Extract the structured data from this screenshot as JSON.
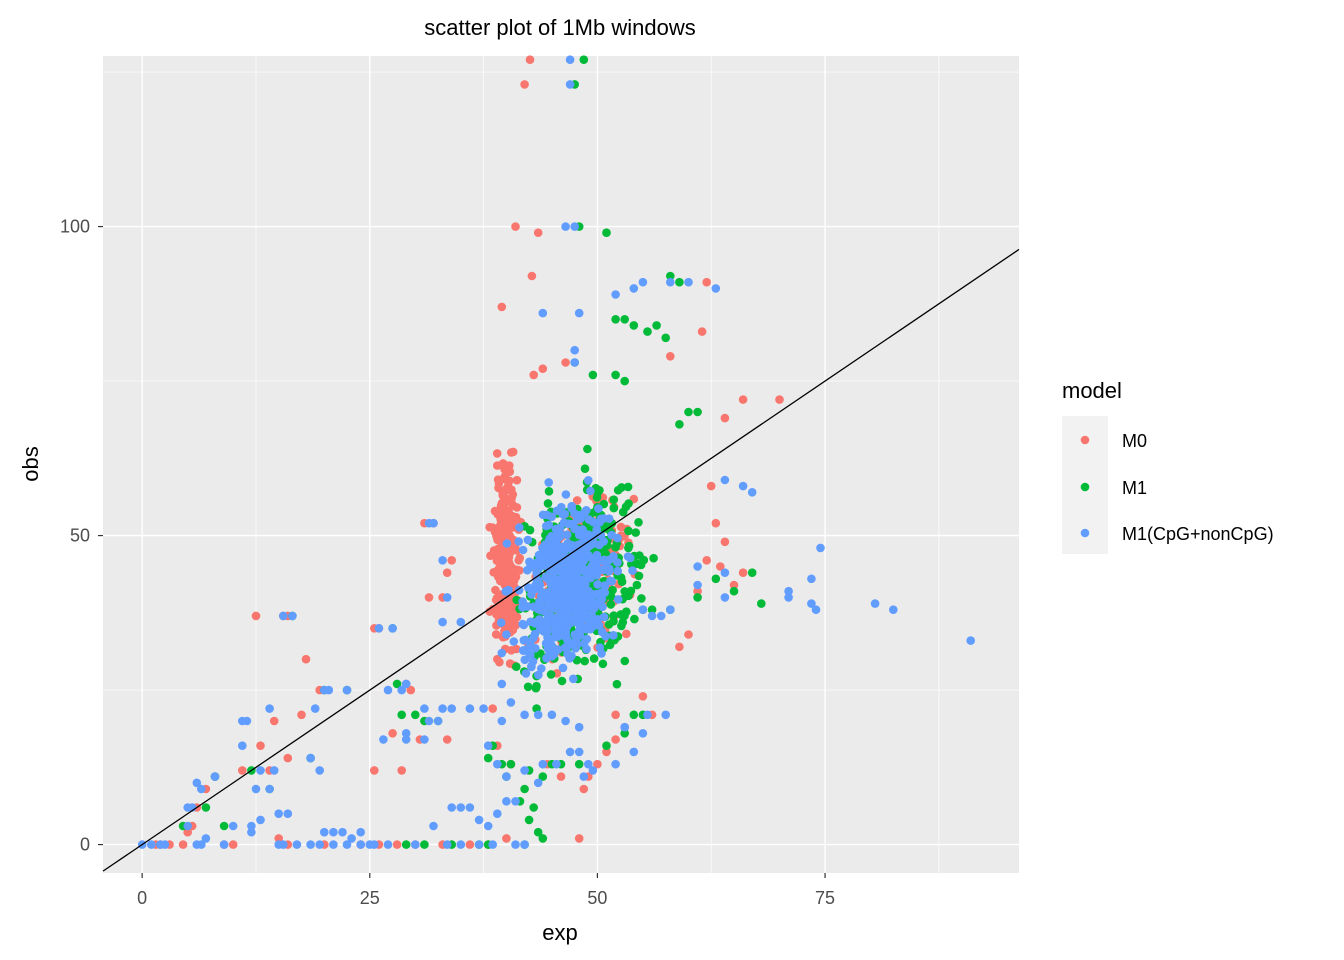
{
  "chart_data": {
    "type": "scatter",
    "title": "scatter plot of 1Mb windows",
    "xlabel": "exp",
    "ylabel": "obs",
    "xlim": [
      -4.3,
      96.3
    ],
    "ylim": [
      -4.6,
      127.6
    ],
    "x_ticks": [
      0,
      25,
      50,
      75
    ],
    "y_ticks": [
      0,
      50,
      100
    ],
    "grid": true,
    "legend": {
      "title": "model",
      "placement": "right",
      "entries": [
        "M0",
        "M1",
        "M1(CpG+nonCpG)"
      ]
    },
    "colors": {
      "M0": "#F8766D",
      "M1": "#00BA38",
      "M1(CpG+nonCpG)": "#619CFF",
      "panel": "#EBEBEB",
      "line": "#000000"
    },
    "reference_line": {
      "label": "",
      "x": [
        -4.3,
        96.3
      ],
      "y": [
        -4.3,
        96.3
      ]
    },
    "clusters": [
      {
        "series": "M0",
        "cx": [
          38,
          42
        ],
        "cy": [
          26,
          66
        ],
        "n": 260
      },
      {
        "series": "M0",
        "cx": [
          41,
          55
        ],
        "cy": [
          26,
          60
        ],
        "n": 220
      },
      {
        "series": "M1",
        "cx": [
          40,
          57
        ],
        "cy": [
          22,
          64
        ],
        "n": 380
      },
      {
        "series": "M1(CpG+nonCpG)",
        "cx": [
          39,
          54
        ],
        "cy": [
          24,
          60
        ],
        "n": 520
      }
    ],
    "series": [
      {
        "name": "M0",
        "points": [
          [
            42.6,
            127
          ],
          [
            42,
            123
          ],
          [
            41,
            100
          ],
          [
            43.5,
            99
          ],
          [
            42.8,
            92
          ],
          [
            39.5,
            87
          ],
          [
            46.5,
            78
          ],
          [
            44,
            77
          ],
          [
            43,
            76
          ],
          [
            62,
            91
          ],
          [
            61.5,
            83
          ],
          [
            58,
            79
          ],
          [
            70,
            72
          ],
          [
            66,
            72
          ],
          [
            64,
            69
          ],
          [
            62.5,
            58
          ],
          [
            63,
            52
          ],
          [
            64,
            49
          ],
          [
            63.5,
            45
          ],
          [
            12.5,
            37
          ],
          [
            16,
            37
          ],
          [
            15.5,
            37
          ],
          [
            25.5,
            35
          ],
          [
            26,
            35
          ],
          [
            32,
            52
          ],
          [
            31,
            52
          ],
          [
            31.5,
            40
          ],
          [
            33.5,
            44
          ],
          [
            33,
            40
          ],
          [
            34,
            46
          ],
          [
            29,
            26
          ],
          [
            29.5,
            25
          ],
          [
            27.5,
            18
          ],
          [
            30.5,
            17
          ],
          [
            33.5,
            17
          ],
          [
            28.5,
            12
          ],
          [
            25.5,
            12
          ],
          [
            14.5,
            20
          ],
          [
            13,
            16
          ],
          [
            11,
            12
          ],
          [
            8,
            11
          ],
          [
            7,
            9
          ],
          [
            6,
            6
          ],
          [
            5.5,
            3
          ],
          [
            5,
            2
          ],
          [
            3,
            0
          ],
          [
            2,
            0
          ],
          [
            1.5,
            0
          ],
          [
            4.5,
            0
          ],
          [
            9,
            0
          ],
          [
            10,
            0
          ],
          [
            15,
            1
          ],
          [
            16,
            0
          ],
          [
            20,
            0
          ],
          [
            24,
            0
          ],
          [
            26,
            0
          ],
          [
            28,
            0
          ],
          [
            30,
            0
          ],
          [
            33,
            0
          ],
          [
            36,
            0
          ],
          [
            38,
            0
          ],
          [
            40,
            1
          ],
          [
            48,
            1
          ],
          [
            48.5,
            9
          ],
          [
            49,
            11
          ],
          [
            50,
            13
          ],
          [
            51,
            15
          ],
          [
            52,
            17
          ],
          [
            53,
            19
          ],
          [
            52,
            21
          ],
          [
            55,
            24
          ],
          [
            56,
            21
          ],
          [
            59,
            32
          ],
          [
            60,
            34
          ],
          [
            61,
            41
          ],
          [
            62,
            46
          ],
          [
            65,
            42
          ],
          [
            66,
            44
          ],
          [
            39,
            30
          ],
          [
            38.5,
            22
          ],
          [
            39,
            16
          ],
          [
            40.5,
            13
          ],
          [
            44.5,
            13
          ],
          [
            46,
            11
          ],
          [
            18,
            30
          ],
          [
            19.5,
            25
          ],
          [
            17.5,
            21
          ],
          [
            16,
            14
          ],
          [
            14,
            12
          ]
        ]
      },
      {
        "name": "M1",
        "points": [
          [
            48.5,
            127
          ],
          [
            47.5,
            123
          ],
          [
            51,
            99
          ],
          [
            48,
            100
          ],
          [
            58,
            92
          ],
          [
            59,
            91
          ],
          [
            53,
            85
          ],
          [
            52,
            85
          ],
          [
            54,
            84
          ],
          [
            56.5,
            84
          ],
          [
            55.5,
            83
          ],
          [
            57.5,
            82
          ],
          [
            47.5,
            78
          ],
          [
            49.5,
            76
          ],
          [
            52,
            76
          ],
          [
            53,
            75
          ],
          [
            61,
            70
          ],
          [
            60,
            70
          ],
          [
            59,
            68
          ],
          [
            68,
            39
          ],
          [
            65,
            41
          ],
          [
            67,
            44
          ],
          [
            63,
            43
          ],
          [
            61,
            40
          ],
          [
            58,
            38
          ],
          [
            56,
            38
          ],
          [
            55,
            38
          ],
          [
            16.5,
            37
          ],
          [
            27.5,
            35
          ],
          [
            28,
            26
          ],
          [
            28.5,
            21
          ],
          [
            30,
            21
          ],
          [
            31,
            20
          ],
          [
            32.5,
            20
          ],
          [
            29,
            0
          ],
          [
            31,
            0
          ],
          [
            34,
            0
          ],
          [
            37,
            0
          ],
          [
            38,
            0
          ],
          [
            42,
            0
          ],
          [
            44,
            1
          ],
          [
            43.5,
            2
          ],
          [
            42.5,
            4
          ],
          [
            43,
            6
          ],
          [
            41.5,
            7
          ],
          [
            42,
            9
          ],
          [
            40,
            11
          ],
          [
            42.5,
            12
          ],
          [
            44,
            11
          ],
          [
            45,
            13
          ],
          [
            46,
            13
          ],
          [
            48,
            13
          ],
          [
            51,
            16
          ],
          [
            53,
            18
          ],
          [
            54,
            21
          ],
          [
            55,
            21
          ],
          [
            39.5,
            13
          ],
          [
            40.5,
            13
          ],
          [
            38.5,
            16
          ],
          [
            38,
            14
          ],
          [
            22.5,
            25
          ],
          [
            20,
            25
          ],
          [
            18.5,
            14
          ],
          [
            14,
            9
          ],
          [
            12,
            12
          ],
          [
            8,
            11
          ],
          [
            7,
            6
          ],
          [
            4.5,
            3
          ],
          [
            9,
            3
          ]
        ]
      },
      {
        "name": "M1(CpG+nonCpG)",
        "points": [
          [
            47,
            127
          ],
          [
            47,
            123
          ],
          [
            47.5,
            100
          ],
          [
            46.5,
            100
          ],
          [
            63,
            90
          ],
          [
            60,
            91
          ],
          [
            58,
            91
          ],
          [
            55,
            91
          ],
          [
            54,
            90
          ],
          [
            52,
            89
          ],
          [
            48,
            86
          ],
          [
            44,
            86
          ],
          [
            47.5,
            78
          ],
          [
            47.5,
            80
          ],
          [
            91,
            33
          ],
          [
            82.5,
            38
          ],
          [
            80.5,
            39
          ],
          [
            74,
            38
          ],
          [
            73.5,
            39
          ],
          [
            73.5,
            43
          ],
          [
            71,
            40
          ],
          [
            71,
            41
          ],
          [
            74.5,
            48
          ],
          [
            67,
            57
          ],
          [
            66,
            58
          ],
          [
            64,
            59
          ],
          [
            64,
            44
          ],
          [
            64,
            40
          ],
          [
            61,
            42
          ],
          [
            61,
            45
          ],
          [
            58,
            38
          ],
          [
            57,
            37
          ],
          [
            56,
            37
          ],
          [
            55,
            38
          ],
          [
            16.5,
            37
          ],
          [
            15.5,
            37
          ],
          [
            27.5,
            35
          ],
          [
            26,
            35
          ],
          [
            32,
            52
          ],
          [
            31.5,
            52
          ],
          [
            33,
            46
          ],
          [
            33.5,
            40
          ],
          [
            33,
            36
          ],
          [
            35,
            36
          ],
          [
            29,
            26
          ],
          [
            28.5,
            25
          ],
          [
            27,
            25
          ],
          [
            29,
            18
          ],
          [
            26.5,
            17
          ],
          [
            29,
            17
          ],
          [
            31,
            17
          ],
          [
            31.5,
            20
          ],
          [
            32.5,
            20
          ],
          [
            22.5,
            25
          ],
          [
            20.5,
            25
          ],
          [
            20,
            25
          ],
          [
            19,
            22
          ],
          [
            18.5,
            14
          ],
          [
            19.5,
            12
          ],
          [
            14.5,
            12
          ],
          [
            14,
            9
          ],
          [
            12.5,
            9
          ],
          [
            11,
            16
          ],
          [
            11,
            20
          ],
          [
            11.5,
            20
          ],
          [
            14,
            22
          ],
          [
            13,
            12
          ],
          [
            10,
            3
          ],
          [
            8,
            11
          ],
          [
            6.5,
            9
          ],
          [
            6,
            10
          ],
          [
            5,
            6
          ],
          [
            5.5,
            6
          ],
          [
            5,
            3
          ],
          [
            7,
            1
          ],
          [
            6,
            0
          ],
          [
            6.5,
            0
          ],
          [
            1,
            0
          ],
          [
            2,
            0
          ],
          [
            0,
            0
          ],
          [
            2.5,
            0
          ],
          [
            9,
            0
          ],
          [
            15,
            0
          ],
          [
            15.5,
            0
          ],
          [
            18.5,
            0
          ],
          [
            19.5,
            0
          ],
          [
            21,
            0
          ],
          [
            22.5,
            0
          ],
          [
            24,
            0
          ],
          [
            25,
            0
          ],
          [
            25.5,
            0
          ],
          [
            27,
            0
          ],
          [
            30,
            0
          ],
          [
            33.5,
            0
          ],
          [
            35,
            0
          ],
          [
            37,
            0
          ],
          [
            38.5,
            0
          ],
          [
            41,
            0
          ],
          [
            42,
            0
          ],
          [
            12,
            2
          ],
          [
            12,
            3
          ],
          [
            13,
            4
          ],
          [
            15,
            5
          ],
          [
            16,
            5
          ],
          [
            17,
            0
          ],
          [
            20,
            2
          ],
          [
            21,
            2
          ],
          [
            22,
            2
          ],
          [
            23,
            1
          ],
          [
            24,
            2
          ],
          [
            32,
            3
          ],
          [
            34,
            6
          ],
          [
            35,
            6
          ],
          [
            36,
            6
          ],
          [
            37,
            4
          ],
          [
            38,
            3
          ],
          [
            39,
            5
          ],
          [
            40,
            7
          ],
          [
            41,
            7
          ],
          [
            42,
            12
          ],
          [
            43.5,
            10
          ],
          [
            44,
            13
          ],
          [
            45.5,
            13
          ],
          [
            47,
            15
          ],
          [
            48,
            15
          ],
          [
            49,
            13
          ],
          [
            48.5,
            11
          ],
          [
            49.5,
            12
          ],
          [
            52,
            13
          ],
          [
            54,
            15
          ],
          [
            55,
            18
          ],
          [
            38,
            16
          ],
          [
            39,
            13
          ],
          [
            40,
            11
          ],
          [
            39.5,
            20
          ],
          [
            37.5,
            22
          ],
          [
            36,
            22
          ],
          [
            34,
            22
          ],
          [
            33,
            22
          ],
          [
            31,
            22
          ],
          [
            40.5,
            23
          ],
          [
            42,
            21
          ],
          [
            43.5,
            21
          ],
          [
            45,
            21
          ],
          [
            46.5,
            20
          ],
          [
            48,
            19
          ],
          [
            55.5,
            21
          ],
          [
            57.5,
            21
          ],
          [
            53,
            19
          ],
          [
            39.5,
            26
          ],
          [
            39.5,
            31
          ],
          [
            40,
            34
          ]
        ]
      }
    ]
  }
}
